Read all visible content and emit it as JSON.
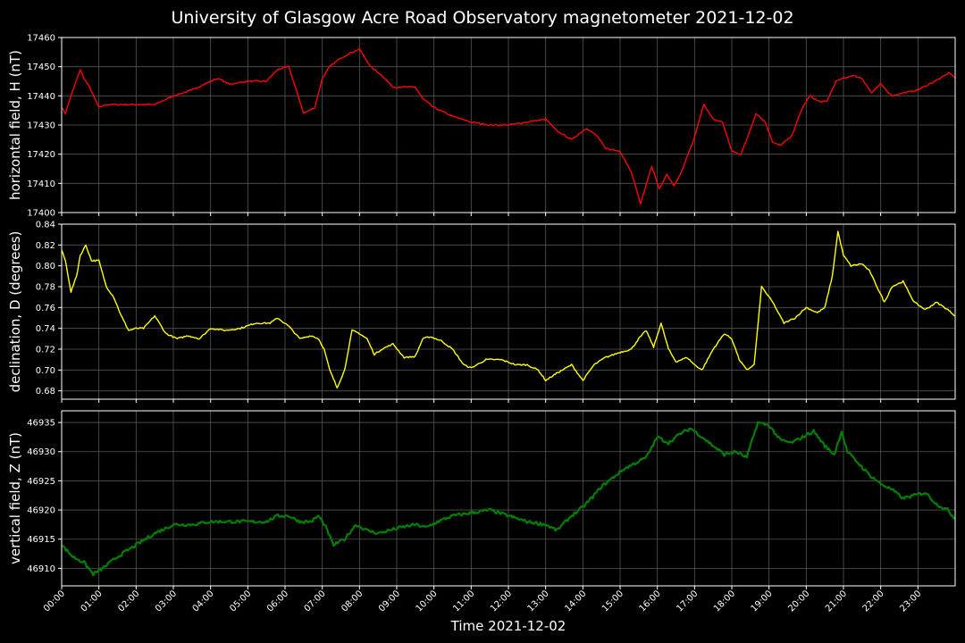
{
  "chart_data": {
    "title": "University of Glasgow Acre Road Observatory magnetometer 2021-12-02",
    "xlabel": "Time 2021-12-02",
    "x_ticks": [
      "00:00",
      "01:00",
      "02:00",
      "03:00",
      "04:00",
      "05:00",
      "06:00",
      "07:00",
      "08:00",
      "09:00",
      "10:00",
      "11:00",
      "12:00",
      "13:00",
      "14:00",
      "15:00",
      "16:00",
      "17:00",
      "18:00",
      "19:00",
      "20:00",
      "21:00",
      "22:00",
      "23:00"
    ],
    "xlim_hours": [
      0,
      24
    ],
    "grid": true,
    "panels": [
      {
        "type": "line",
        "ylabel": "horizontal field, H (nT)",
        "color": "#ff0000",
        "ylim": [
          17400,
          17460
        ],
        "yticks": [
          "17400",
          "17410",
          "17420",
          "17430",
          "17440",
          "17450",
          "17460"
        ],
        "x_hours": [
          0,
          0.1,
          0.25,
          0.5,
          0.6,
          0.75,
          1.0,
          1.2,
          1.5,
          2.0,
          2.5,
          3.0,
          3.5,
          4.0,
          4.2,
          4.5,
          5.0,
          5.5,
          5.8,
          6.1,
          6.3,
          6.5,
          6.8,
          7.0,
          7.2,
          7.5,
          7.8,
          8.0,
          8.3,
          8.6,
          8.9,
          9.2,
          9.5,
          9.7,
          10.0,
          10.5,
          11.0,
          11.5,
          12.0,
          12.5,
          13.0,
          13.3,
          13.7,
          14.1,
          14.4,
          14.6,
          15.0,
          15.3,
          15.55,
          15.85,
          16.05,
          16.25,
          16.45,
          16.65,
          16.95,
          17.25,
          17.5,
          17.75,
          18.0,
          18.25,
          18.4,
          18.65,
          18.9,
          19.1,
          19.3,
          19.6,
          19.9,
          20.1,
          20.35,
          20.55,
          20.8,
          21.0,
          21.25,
          21.5,
          21.75,
          22.0,
          22.3,
          22.6,
          23.0,
          23.3,
          23.6,
          23.85,
          24.0
        ],
        "values": [
          17436,
          17434,
          17440,
          17449,
          17446,
          17443,
          17436,
          17437,
          17437,
          17437,
          17437,
          17440,
          17442,
          17445,
          17446,
          17444,
          17445,
          17445,
          17449,
          17450,
          17442,
          17434,
          17436,
          17446,
          17450,
          17453,
          17455,
          17456,
          17450,
          17447,
          17443,
          17443,
          17443,
          17439,
          17436,
          17433,
          17431,
          17430,
          17430,
          17431,
          17432,
          17428,
          17425,
          17429,
          17426,
          17422,
          17421,
          17414,
          17403,
          17416,
          17408,
          17413,
          17409,
          17414,
          17424,
          17437,
          17432,
          17431,
          17421,
          17420,
          17425,
          17434,
          17431,
          17424,
          17423,
          17426,
          17436,
          17440,
          17438,
          17438,
          17445,
          17446,
          17447,
          17446,
          17441,
          17444,
          17440,
          17441,
          17442,
          17444,
          17446,
          17448,
          17446
        ]
      },
      {
        "type": "line",
        "ylabel": "declination, D (degrees)",
        "color": "#ffff00",
        "ylim": [
          0.672,
          0.84
        ],
        "yticks": [
          "0.68",
          "0.70",
          "0.72",
          "0.74",
          "0.76",
          "0.78",
          "0.80",
          "0.82",
          "0.84"
        ],
        "x_hours": [
          0,
          0.1,
          0.25,
          0.4,
          0.5,
          0.65,
          0.8,
          1.0,
          1.2,
          1.4,
          1.6,
          1.8,
          2.0,
          2.2,
          2.5,
          2.8,
          3.1,
          3.4,
          3.7,
          4.0,
          4.4,
          4.8,
          5.2,
          5.6,
          5.8,
          6.1,
          6.4,
          6.7,
          6.9,
          7.05,
          7.2,
          7.4,
          7.6,
          7.8,
          8.0,
          8.2,
          8.4,
          8.6,
          8.9,
          9.2,
          9.5,
          9.7,
          9.9,
          10.2,
          10.5,
          10.8,
          11.0,
          11.4,
          11.8,
          12.2,
          12.5,
          12.8,
          13.0,
          13.3,
          13.7,
          14.0,
          14.3,
          14.6,
          15.0,
          15.3,
          15.5,
          15.7,
          15.9,
          16.1,
          16.3,
          16.5,
          16.8,
          17.0,
          17.2,
          17.5,
          17.8,
          18.0,
          18.2,
          18.4,
          18.6,
          18.8,
          19.1,
          19.4,
          19.7,
          20.0,
          20.3,
          20.5,
          20.7,
          20.85,
          21.0,
          21.2,
          21.5,
          21.7,
          21.9,
          22.1,
          22.3,
          22.6,
          22.9,
          23.2,
          23.5,
          23.8,
          24.0
        ],
        "values": [
          0.815,
          0.805,
          0.775,
          0.79,
          0.81,
          0.82,
          0.805,
          0.805,
          0.78,
          0.77,
          0.752,
          0.738,
          0.74,
          0.74,
          0.752,
          0.735,
          0.73,
          0.733,
          0.73,
          0.74,
          0.738,
          0.74,
          0.745,
          0.745,
          0.75,
          0.742,
          0.73,
          0.733,
          0.73,
          0.72,
          0.7,
          0.683,
          0.7,
          0.738,
          0.735,
          0.73,
          0.715,
          0.72,
          0.725,
          0.712,
          0.713,
          0.73,
          0.732,
          0.728,
          0.72,
          0.705,
          0.702,
          0.71,
          0.71,
          0.705,
          0.705,
          0.7,
          0.69,
          0.697,
          0.705,
          0.69,
          0.705,
          0.712,
          0.717,
          0.72,
          0.73,
          0.738,
          0.722,
          0.745,
          0.72,
          0.708,
          0.712,
          0.705,
          0.7,
          0.72,
          0.735,
          0.73,
          0.71,
          0.7,
          0.705,
          0.78,
          0.765,
          0.745,
          0.75,
          0.76,
          0.755,
          0.76,
          0.79,
          0.833,
          0.81,
          0.8,
          0.802,
          0.795,
          0.78,
          0.765,
          0.78,
          0.785,
          0.765,
          0.758,
          0.765,
          0.758,
          0.752
        ]
      },
      {
        "type": "line",
        "ylabel": "vertical field, Z (nT)",
        "color": "#008000",
        "ylim": [
          46907,
          46937
        ],
        "yticks": [
          "46910",
          "46915",
          "46920",
          "46925",
          "46930",
          "46935"
        ],
        "x_hours": [
          0,
          0.3,
          0.6,
          0.85,
          1.1,
          1.5,
          2.0,
          2.5,
          3.0,
          3.5,
          4.0,
          4.5,
          5.0,
          5.5,
          5.8,
          6.1,
          6.4,
          6.7,
          6.9,
          7.1,
          7.3,
          7.6,
          7.9,
          8.2,
          8.5,
          8.8,
          9.1,
          9.5,
          9.8,
          10.1,
          10.5,
          11.0,
          11.5,
          12.0,
          12.5,
          13.0,
          13.3,
          13.7,
          14.0,
          14.3,
          14.5,
          14.8,
          15.1,
          15.4,
          15.7,
          16.0,
          16.3,
          16.6,
          16.9,
          17.2,
          17.5,
          17.8,
          18.1,
          18.4,
          18.7,
          19.0,
          19.3,
          19.6,
          19.9,
          20.2,
          20.5,
          20.75,
          20.95,
          21.1,
          21.4,
          21.7,
          22.0,
          22.3,
          22.6,
          22.9,
          23.2,
          23.5,
          23.8,
          24.0
        ],
        "values": [
          46914,
          46912,
          46911,
          46909,
          46910,
          46912,
          46914,
          46916,
          46917.5,
          46917.5,
          46918,
          46918,
          46918,
          46918,
          46919,
          46919,
          46918,
          46918,
          46919,
          46917,
          46914,
          46915,
          46917.5,
          46916.5,
          46916,
          46916.5,
          46917,
          46917.5,
          46917,
          46918,
          46919,
          46919.5,
          46920,
          46919,
          46918,
          46917.5,
          46916.5,
          46919,
          46920.5,
          46922.5,
          46924,
          46925.5,
          46927,
          46928,
          46929,
          46932.5,
          46931.5,
          46933,
          46934,
          46932.5,
          46931,
          46929.5,
          46930,
          46929,
          46935,
          46934.5,
          46932,
          46931.5,
          46932.5,
          46933.5,
          46931,
          46929.5,
          46933.5,
          46930,
          46928,
          46926,
          46924.5,
          46923.5,
          46922,
          46922.5,
          46923,
          46921,
          46920,
          46918.5
        ]
      }
    ]
  }
}
